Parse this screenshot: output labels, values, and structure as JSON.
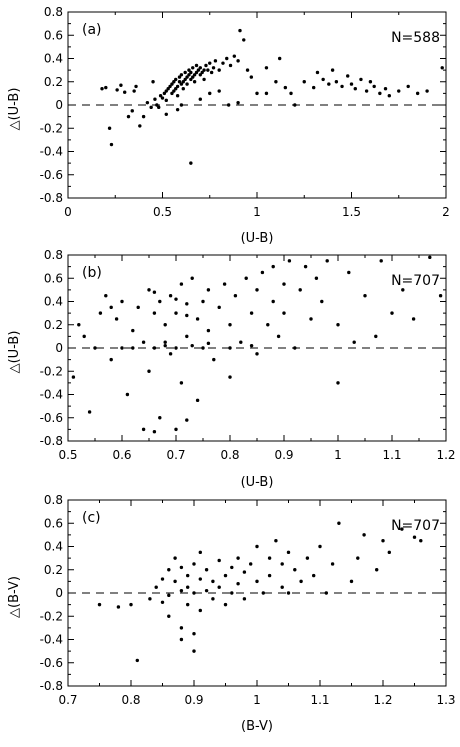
{
  "chart_data": [
    {
      "type": "scatter",
      "panel_label": "(a)",
      "annotation": "N=588",
      "xlabel": "(U-B)",
      "ylabel": "△(U-B)",
      "xlim": [
        0,
        2
      ],
      "ylim": [
        -0.8,
        0.8
      ],
      "x_ticks": [
        0,
        0.5,
        1,
        1.5,
        2
      ],
      "x_tick_labels": [
        "0",
        "0.5",
        "1",
        "1.5",
        "2"
      ],
      "y_ticks": [
        -0.8,
        -0.6,
        -0.4,
        -0.2,
        0,
        0.2,
        0.4,
        0.6,
        0.8
      ],
      "y_tick_labels": [
        "-0.8",
        "-0.6",
        "-0.4",
        "-0.2",
        "0",
        "0.2",
        "0.4",
        "0.6",
        "0.8"
      ],
      "reference_line_y": 0,
      "points": [
        [
          0.18,
          0.14
        ],
        [
          0.2,
          0.15
        ],
        [
          0.22,
          -0.2
        ],
        [
          0.23,
          -0.34
        ],
        [
          0.26,
          0.13
        ],
        [
          0.28,
          0.17
        ],
        [
          0.3,
          0.11
        ],
        [
          0.32,
          -0.1
        ],
        [
          0.34,
          -0.05
        ],
        [
          0.35,
          0.12
        ],
        [
          0.36,
          0.16
        ],
        [
          0.38,
          -0.18
        ],
        [
          0.4,
          -0.1
        ],
        [
          0.42,
          0.02
        ],
        [
          0.44,
          -0.02
        ],
        [
          0.45,
          0.2
        ],
        [
          0.46,
          0.05
        ],
        [
          0.47,
          0.0
        ],
        [
          0.48,
          -0.02
        ],
        [
          0.49,
          0.08
        ],
        [
          0.5,
          0.06
        ],
        [
          0.51,
          0.1
        ],
        [
          0.52,
          0.12
        ],
        [
          0.52,
          0.04
        ],
        [
          0.53,
          0.14
        ],
        [
          0.54,
          0.16
        ],
        [
          0.55,
          0.1
        ],
        [
          0.55,
          0.18
        ],
        [
          0.56,
          0.12
        ],
        [
          0.56,
          0.2
        ],
        [
          0.57,
          0.14
        ],
        [
          0.57,
          0.22
        ],
        [
          0.58,
          0.16
        ],
        [
          0.58,
          0.08
        ],
        [
          0.59,
          0.2
        ],
        [
          0.59,
          0.24
        ],
        [
          0.6,
          0.18
        ],
        [
          0.6,
          0.26
        ],
        [
          0.61,
          0.2
        ],
        [
          0.61,
          0.14
        ],
        [
          0.62,
          0.22
        ],
        [
          0.62,
          0.28
        ],
        [
          0.63,
          0.24
        ],
        [
          0.63,
          0.18
        ],
        [
          0.64,
          0.26
        ],
        [
          0.64,
          0.3
        ],
        [
          0.65,
          0.22
        ],
        [
          0.65,
          0.28
        ],
        [
          0.66,
          0.24
        ],
        [
          0.66,
          0.32
        ],
        [
          0.67,
          0.26
        ],
        [
          0.67,
          0.2
        ],
        [
          0.68,
          0.28
        ],
        [
          0.68,
          0.34
        ],
        [
          0.69,
          0.3
        ],
        [
          0.7,
          0.26
        ],
        [
          0.7,
          0.32
        ],
        [
          0.71,
          0.28
        ],
        [
          0.72,
          0.3
        ],
        [
          0.72,
          0.22
        ],
        [
          0.73,
          0.34
        ],
        [
          0.74,
          0.3
        ],
        [
          0.75,
          0.36
        ],
        [
          0.76,
          0.28
        ],
        [
          0.77,
          0.32
        ],
        [
          0.78,
          0.38
        ],
        [
          0.8,
          0.3
        ],
        [
          0.82,
          0.36
        ],
        [
          0.84,
          0.4
        ],
        [
          0.86,
          0.34
        ],
        [
          0.88,
          0.42
        ],
        [
          0.9,
          0.38
        ],
        [
          0.91,
          0.64
        ],
        [
          0.93,
          0.56
        ],
        [
          0.95,
          0.3
        ],
        [
          0.97,
          0.24
        ],
        [
          0.65,
          -0.5
        ],
        [
          0.7,
          0.05
        ],
        [
          0.75,
          0.1
        ],
        [
          0.8,
          0.12
        ],
        [
          0.85,
          0.0
        ],
        [
          0.9,
          0.02
        ],
        [
          0.6,
          0.0
        ],
        [
          0.58,
          -0.04
        ],
        [
          0.52,
          -0.08
        ],
        [
          1.0,
          0.1
        ],
        [
          1.05,
          0.1
        ],
        [
          1.12,
          0.4
        ],
        [
          1.15,
          0.15
        ],
        [
          1.2,
          0.0
        ],
        [
          1.25,
          0.2
        ],
        [
          1.3,
          0.15
        ],
        [
          1.32,
          0.28
        ],
        [
          1.35,
          0.22
        ],
        [
          1.38,
          0.18
        ],
        [
          1.4,
          0.3
        ],
        [
          1.42,
          0.2
        ],
        [
          1.45,
          0.16
        ],
        [
          1.48,
          0.25
        ],
        [
          1.5,
          0.18
        ],
        [
          1.52,
          0.14
        ],
        [
          1.55,
          0.22
        ],
        [
          1.58,
          0.12
        ],
        [
          1.6,
          0.2
        ],
        [
          1.62,
          0.16
        ],
        [
          1.65,
          0.1
        ],
        [
          1.68,
          0.14
        ],
        [
          1.7,
          0.08
        ],
        [
          1.75,
          0.12
        ],
        [
          1.8,
          0.16
        ],
        [
          1.85,
          0.1
        ],
        [
          1.9,
          0.12
        ],
        [
          1.98,
          0.32
        ],
        [
          1.1,
          0.2
        ],
        [
          1.05,
          0.32
        ],
        [
          1.18,
          0.1
        ]
      ]
    },
    {
      "type": "scatter",
      "panel_label": "(b)",
      "annotation": "N=707",
      "xlabel": "(U-B)",
      "ylabel": "△(U-B)",
      "xlim": [
        0.5,
        1.2
      ],
      "ylim": [
        -0.8,
        0.8
      ],
      "x_ticks": [
        0.5,
        0.6,
        0.7,
        0.8,
        0.9,
        1,
        1.1,
        1.2
      ],
      "x_tick_labels": [
        "0.5",
        "0.6",
        "0.7",
        "0.8",
        "0.9",
        "1",
        "1.1",
        "1.2"
      ],
      "y_ticks": [
        -0.8,
        -0.6,
        -0.4,
        -0.2,
        0,
        0.2,
        0.4,
        0.6,
        0.8
      ],
      "y_tick_labels": [
        "-0.8",
        "-0.6",
        "-0.4",
        "-0.2",
        "0",
        "0.2",
        "0.4",
        "0.6",
        "0.8"
      ],
      "reference_line_y": 0,
      "points": [
        [
          0.51,
          -0.25
        ],
        [
          0.52,
          0.2
        ],
        [
          0.53,
          0.1
        ],
        [
          0.54,
          -0.55
        ],
        [
          0.55,
          0.0
        ],
        [
          0.56,
          0.3
        ],
        [
          0.57,
          0.45
        ],
        [
          0.58,
          -0.1
        ],
        [
          0.59,
          0.25
        ],
        [
          0.6,
          0.4
        ],
        [
          0.61,
          -0.4
        ],
        [
          0.62,
          0.15
        ],
        [
          0.63,
          0.35
        ],
        [
          0.64,
          0.05
        ],
        [
          0.65,
          0.5
        ],
        [
          0.65,
          -0.2
        ],
        [
          0.66,
          0.3
        ],
        [
          0.66,
          0.0
        ],
        [
          0.67,
          0.4
        ],
        [
          0.67,
          -0.6
        ],
        [
          0.68,
          0.2
        ],
        [
          0.68,
          0.02
        ],
        [
          0.69,
          0.45
        ],
        [
          0.69,
          -0.05
        ],
        [
          0.7,
          0.3
        ],
        [
          0.7,
          0.0
        ],
        [
          0.71,
          0.55
        ],
        [
          0.71,
          -0.3
        ],
        [
          0.72,
          0.1
        ],
        [
          0.72,
          0.38
        ],
        [
          0.73,
          0.02
        ],
        [
          0.73,
          0.6
        ],
        [
          0.74,
          0.25
        ],
        [
          0.74,
          -0.45
        ],
        [
          0.75,
          0.4
        ],
        [
          0.75,
          0.0
        ],
        [
          0.76,
          0.5
        ],
        [
          0.76,
          0.15
        ],
        [
          0.77,
          -0.1
        ],
        [
          0.78,
          0.35
        ],
        [
          0.79,
          0.55
        ],
        [
          0.8,
          0.2
        ],
        [
          0.8,
          -0.25
        ],
        [
          0.81,
          0.45
        ],
        [
          0.82,
          0.05
        ],
        [
          0.83,
          0.6
        ],
        [
          0.84,
          0.3
        ],
        [
          0.85,
          0.5
        ],
        [
          0.85,
          -0.05
        ],
        [
          0.86,
          0.65
        ],
        [
          0.87,
          0.2
        ],
        [
          0.88,
          0.4
        ],
        [
          0.88,
          0.7
        ],
        [
          0.89,
          0.1
        ],
        [
          0.9,
          0.55
        ],
        [
          0.9,
          0.3
        ],
        [
          0.91,
          0.75
        ],
        [
          0.92,
          0.0
        ],
        [
          0.93,
          0.5
        ],
        [
          0.94,
          0.7
        ],
        [
          0.95,
          0.25
        ],
        [
          0.96,
          0.6
        ],
        [
          0.97,
          0.4
        ],
        [
          0.98,
          0.75
        ],
        [
          1.0,
          0.2
        ],
        [
          1.0,
          -0.3
        ],
        [
          1.02,
          0.65
        ],
        [
          1.03,
          0.05
        ],
        [
          1.05,
          0.45
        ],
        [
          1.07,
          0.1
        ],
        [
          1.08,
          0.75
        ],
        [
          1.1,
          0.3
        ],
        [
          1.12,
          0.5
        ],
        [
          1.14,
          0.25
        ],
        [
          1.17,
          0.78
        ],
        [
          1.19,
          0.45
        ],
        [
          0.66,
          -0.72
        ],
        [
          0.7,
          -0.7
        ],
        [
          0.72,
          -0.62
        ],
        [
          0.64,
          -0.7
        ],
        [
          0.6,
          0.0
        ],
        [
          0.62,
          0.0
        ],
        [
          0.68,
          0.05
        ],
        [
          0.76,
          0.04
        ],
        [
          0.8,
          0.0
        ],
        [
          0.84,
          0.02
        ],
        [
          0.58,
          0.35
        ],
        [
          0.72,
          0.28
        ],
        [
          0.66,
          0.48
        ],
        [
          0.7,
          0.42
        ]
      ]
    },
    {
      "type": "scatter",
      "panel_label": "(c)",
      "annotation": "N=707",
      "xlabel": "(B-V)",
      "ylabel": "△(B-V)",
      "xlim": [
        0.7,
        1.3
      ],
      "ylim": [
        -0.8,
        0.8
      ],
      "x_ticks": [
        0.7,
        0.8,
        0.9,
        1,
        1.1,
        1.2,
        1.3
      ],
      "x_tick_labels": [
        "0.7",
        "0.8",
        "0.9",
        "1",
        "1.1",
        "1.2",
        "1.3"
      ],
      "y_ticks": [
        -0.8,
        -0.6,
        -0.4,
        -0.2,
        0,
        0.2,
        0.4,
        0.6,
        0.8
      ],
      "y_tick_labels": [
        "-0.8",
        "-0.6",
        "-0.4",
        "-0.2",
        "0",
        "0.2",
        "0.4",
        "0.6",
        "0.8"
      ],
      "reference_line_y": 0,
      "points": [
        [
          0.75,
          -0.1
        ],
        [
          0.78,
          -0.12
        ],
        [
          0.8,
          -0.1
        ],
        [
          0.81,
          -0.58
        ],
        [
          0.83,
          -0.05
        ],
        [
          0.84,
          0.05
        ],
        [
          0.85,
          -0.08
        ],
        [
          0.85,
          0.12
        ],
        [
          0.86,
          0.2
        ],
        [
          0.86,
          -0.02
        ],
        [
          0.87,
          0.1
        ],
        [
          0.87,
          0.3
        ],
        [
          0.88,
          0.02
        ],
        [
          0.88,
          -0.3
        ],
        [
          0.88,
          0.22
        ],
        [
          0.89,
          0.15
        ],
        [
          0.89,
          -0.1
        ],
        [
          0.89,
          0.05
        ],
        [
          0.9,
          0.25
        ],
        [
          0.9,
          0.0
        ],
        [
          0.9,
          -0.5
        ],
        [
          0.91,
          0.12
        ],
        [
          0.91,
          0.35
        ],
        [
          0.91,
          -0.15
        ],
        [
          0.92,
          0.2
        ],
        [
          0.92,
          0.02
        ],
        [
          0.93,
          0.1
        ],
        [
          0.93,
          -0.05
        ],
        [
          0.94,
          0.28
        ],
        [
          0.94,
          0.05
        ],
        [
          0.95,
          0.15
        ],
        [
          0.95,
          -0.1
        ],
        [
          0.96,
          0.22
        ],
        [
          0.96,
          0.0
        ],
        [
          0.97,
          0.3
        ],
        [
          0.97,
          0.08
        ],
        [
          0.98,
          0.18
        ],
        [
          0.98,
          -0.05
        ],
        [
          0.99,
          0.25
        ],
        [
          1.0,
          0.1
        ],
        [
          1.0,
          0.4
        ],
        [
          1.01,
          0.0
        ],
        [
          1.02,
          0.3
        ],
        [
          1.02,
          0.15
        ],
        [
          1.03,
          0.45
        ],
        [
          1.04,
          0.05
        ],
        [
          1.04,
          0.25
        ],
        [
          1.05,
          0.35
        ],
        [
          1.05,
          0.0
        ],
        [
          1.06,
          0.2
        ],
        [
          1.07,
          0.1
        ],
        [
          1.08,
          0.3
        ],
        [
          1.09,
          0.15
        ],
        [
          1.1,
          0.4
        ],
        [
          1.11,
          0.0
        ],
        [
          1.12,
          0.25
        ],
        [
          1.13,
          0.6
        ],
        [
          1.15,
          0.1
        ],
        [
          1.16,
          0.3
        ],
        [
          1.17,
          0.5
        ],
        [
          1.19,
          0.2
        ],
        [
          1.2,
          0.45
        ],
        [
          1.21,
          0.35
        ],
        [
          1.23,
          0.55
        ],
        [
          1.25,
          0.48
        ],
        [
          1.26,
          0.45
        ],
        [
          0.88,
          -0.4
        ],
        [
          0.9,
          -0.35
        ],
        [
          0.86,
          -0.2
        ]
      ]
    }
  ]
}
